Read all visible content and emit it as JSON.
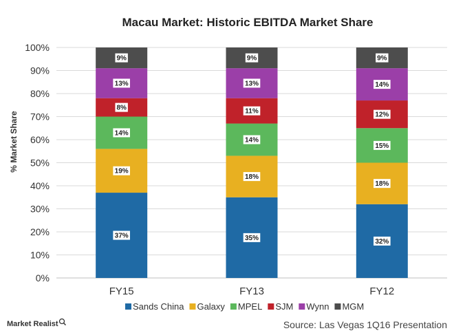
{
  "chart_data": {
    "type": "bar",
    "stacked": true,
    "title": "Macau Market: Historic EBITDA Market Share",
    "xlabel": "",
    "ylabel": "% Market Share",
    "ylim": [
      0,
      100
    ],
    "yticks": [
      "0%",
      "10%",
      "20%",
      "30%",
      "40%",
      "50%",
      "60%",
      "70%",
      "80%",
      "90%",
      "100%"
    ],
    "categories": [
      "FY15",
      "FY13",
      "FY12"
    ],
    "series": [
      {
        "name": "Sands China",
        "color": "#1f6aa5",
        "values": [
          37,
          35,
          32
        ]
      },
      {
        "name": "Galaxy",
        "color": "#e8b021",
        "values": [
          19,
          18,
          18
        ]
      },
      {
        "name": "MPEL",
        "color": "#5cb85c",
        "values": [
          14,
          14,
          15
        ]
      },
      {
        "name": "SJM",
        "color": "#c0222a",
        "values": [
          8,
          11,
          12
        ]
      },
      {
        "name": "Wynn",
        "color": "#9b3fa8",
        "values": [
          13,
          13,
          14
        ]
      },
      {
        "name": "MGM",
        "color": "#4d4d4d",
        "values": [
          9,
          9,
          9
        ]
      }
    ],
    "grid": true,
    "legend": "bottom"
  },
  "footer": {
    "brand": "Market Realist",
    "source": "Source: Las Vegas 1Q16 Presentation"
  }
}
